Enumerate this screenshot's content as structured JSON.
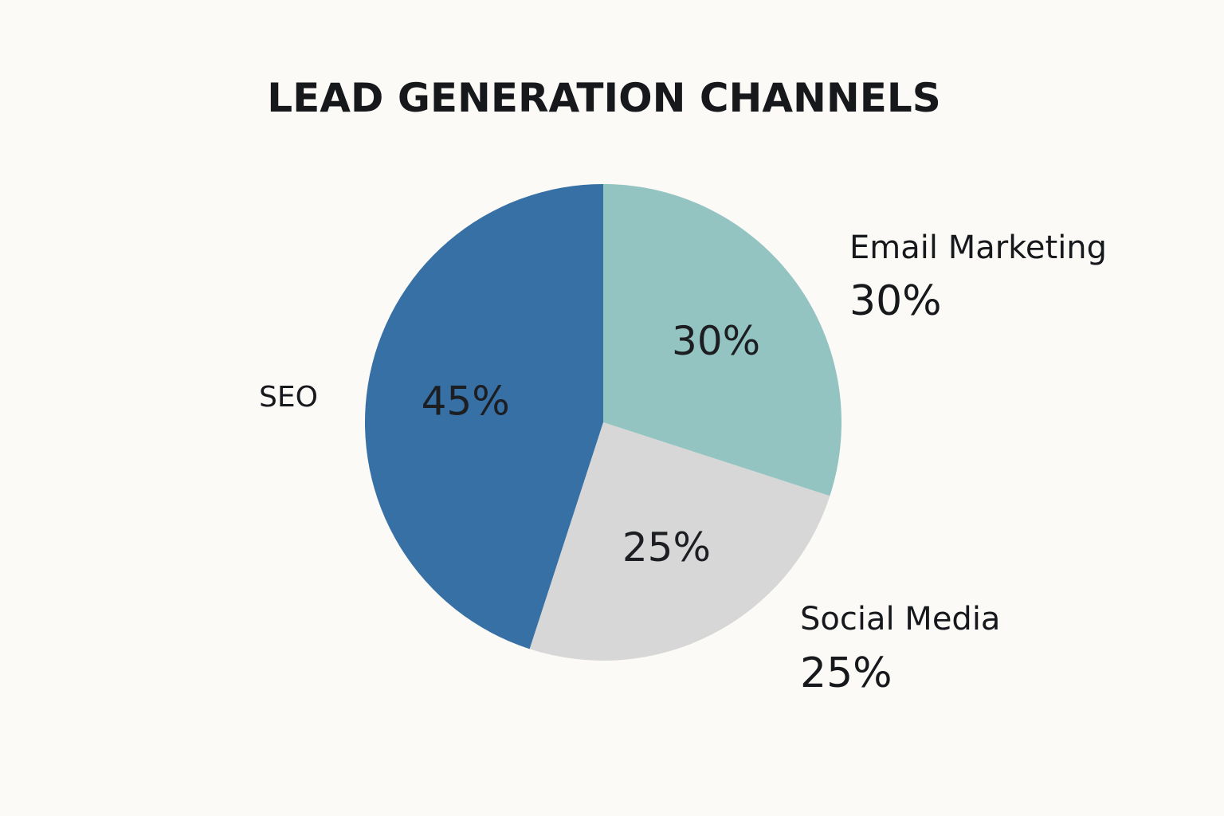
{
  "chart_data": {
    "type": "pie",
    "title": "LEAD GENERATION CHANNELS",
    "slices": [
      {
        "name": "Email Marketing",
        "value": 30,
        "label": "30%",
        "color": "#94c4c2"
      },
      {
        "name": "Social Media",
        "value": 25,
        "label": "25%",
        "color": "#d7d7d7"
      },
      {
        "name": "SEO",
        "value": 45,
        "label": "45%",
        "color": "#3670a4"
      }
    ],
    "start_angle_deg": 0,
    "direction": "clockwise",
    "external_labels": [
      {
        "name": "Email Marketing",
        "value_label": "30%"
      },
      {
        "name": "Social Media",
        "value_label": "25%"
      },
      {
        "name": "SEO"
      }
    ]
  }
}
